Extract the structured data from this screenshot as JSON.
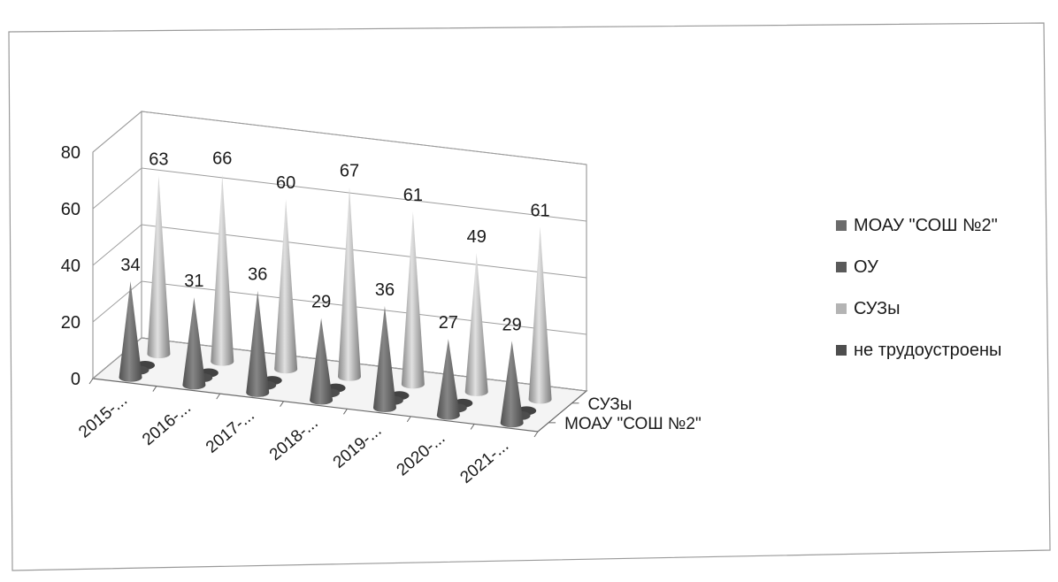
{
  "chart_data": {
    "type": "bar",
    "subtype": "3d-cone",
    "title": "",
    "categories": [
      "2015-...",
      "2016-...",
      "2017-...",
      "2018-...",
      "2019-...",
      "2020-...",
      "2021-..."
    ],
    "depth_labels": [
      "СУЗы",
      "МОАУ \"СОШ №2\""
    ],
    "ylim": [
      0,
      80
    ],
    "yticks": [
      "0",
      "20",
      "40",
      "60",
      "80"
    ],
    "grid": true,
    "legend_position": "right",
    "series": [
      {
        "name": "МОАУ \"СОШ №2\"",
        "values": [
          34,
          31,
          36,
          29,
          36,
          27,
          29
        ],
        "color": "#6b6b6b"
      },
      {
        "name": "ОУ",
        "values": [
          2,
          2,
          2,
          2,
          2,
          2,
          2
        ],
        "color": "#5a5a5a"
      },
      {
        "name": "СУЗы",
        "values": [
          63,
          66,
          60,
          67,
          61,
          49,
          61
        ],
        "color": "#b4b4b4"
      },
      {
        "name": "не трудоустроены",
        "values": [
          2,
          2,
          2,
          2,
          2,
          2,
          2
        ],
        "color": "#4e4e4e"
      }
    ],
    "data_labels": {
      "МОАУ \"СОШ №2\"": [
        "34",
        "31",
        "36",
        "29",
        "36",
        "27",
        "29"
      ],
      "СУЗы": [
        "63",
        "66",
        "60",
        "67",
        "61",
        "49",
        "61"
      ]
    }
  }
}
